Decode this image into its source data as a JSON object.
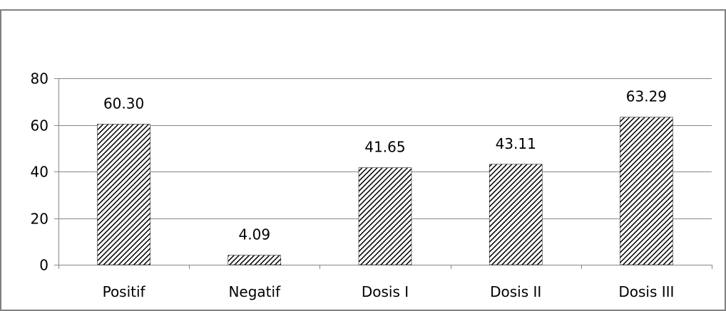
{
  "chart_data": {
    "type": "bar",
    "title": "",
    "xlabel": "",
    "ylabel": "",
    "categories": [
      "Positif",
      "Negatif",
      "Dosis I",
      "Dosis II",
      "Dosis III"
    ],
    "values": [
      60.3,
      4.09,
      41.65,
      43.11,
      63.29
    ],
    "data_labels": [
      "60.30",
      "4.09",
      "41.65",
      "43.11",
      "63.29"
    ],
    "ylim": [
      0,
      80
    ],
    "yticks": [
      0,
      20,
      40,
      60,
      80
    ],
    "ytick_labels": [
      "0",
      "20",
      "40",
      "60",
      "80"
    ],
    "grid": true,
    "legend": "none",
    "bar_fill": "diagonal-hatch",
    "colors": {
      "bar_hatch": "#000000",
      "bar_background": "#ffffff",
      "gridline": "#878787",
      "frame": "#808080",
      "text": "#000000"
    }
  }
}
